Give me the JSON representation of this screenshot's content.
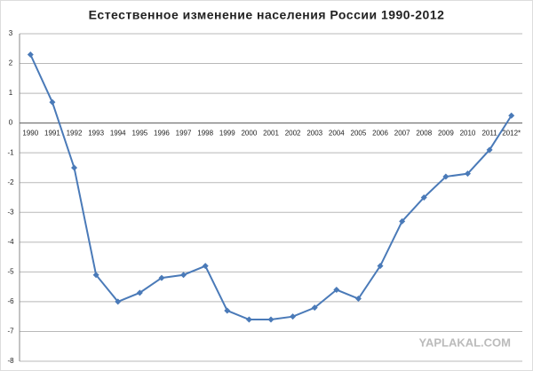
{
  "chart_data": {
    "type": "line",
    "title": "Естественное изменение населения России 1990-2012",
    "categories": [
      "1990",
      "1991",
      "1992",
      "1993",
      "1994",
      "1995",
      "1996",
      "1997",
      "1998",
      "1999",
      "2000",
      "2001",
      "2002",
      "2003",
      "2004",
      "2005",
      "2006",
      "2007",
      "2008",
      "2009",
      "2010",
      "2011",
      "2012*"
    ],
    "values": [
      2.3,
      0.7,
      -1.5,
      -5.1,
      -6.0,
      -5.7,
      -5.2,
      -5.1,
      -4.8,
      -6.3,
      -6.6,
      -6.6,
      -6.5,
      -6.2,
      -5.6,
      -5.9,
      -4.8,
      -3.3,
      -2.5,
      -1.8,
      -1.7,
      -0.9,
      0.25
    ],
    "color": "#4a7ab8",
    "ylim": [
      -8,
      3
    ],
    "yticks": [
      -8,
      -7,
      -6,
      -5,
      -4,
      -3,
      -2,
      -1,
      0,
      1,
      2,
      3
    ],
    "grid": true,
    "watermark": "YAPLAKAL.COM"
  }
}
